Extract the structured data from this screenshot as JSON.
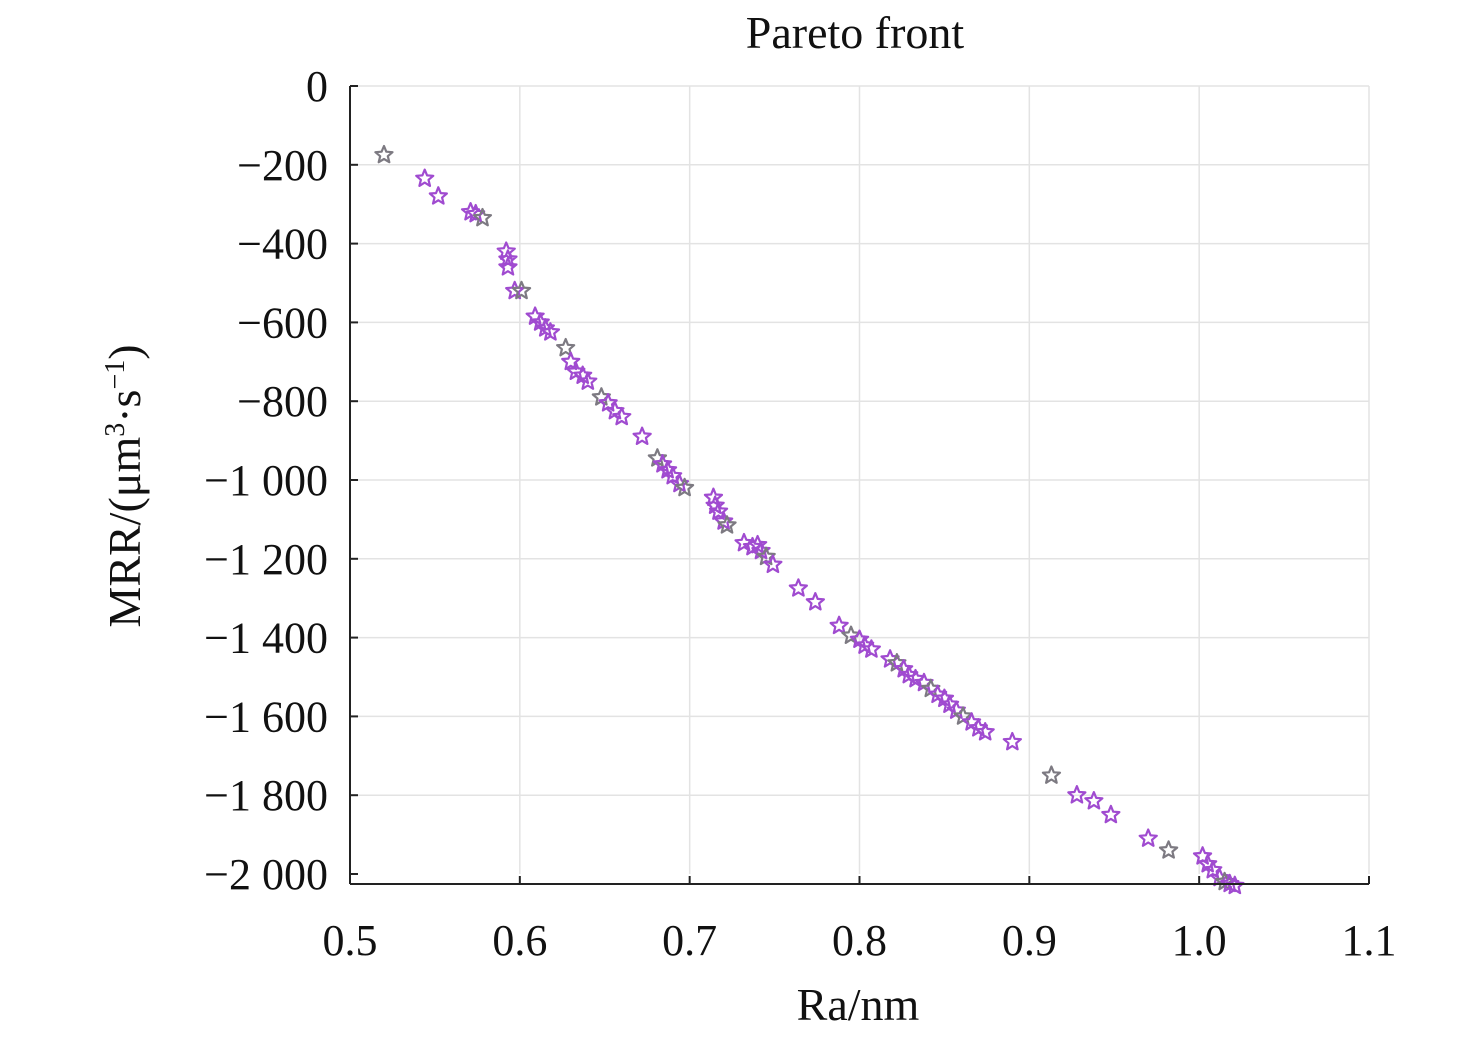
{
  "chart_data": {
    "type": "scatter",
    "title": "Pareto front",
    "xlabel": "Ra/nm",
    "ylabel": {
      "base": "MRR/(μm",
      "sup1": "3",
      "mid": "·s",
      "sup2": "−1",
      "end": ")"
    },
    "xlim": [
      0.5,
      1.1
    ],
    "ylim": [
      -2000,
      0
    ],
    "xticks": [
      0.5,
      0.6,
      0.7,
      0.8,
      0.9,
      1.0,
      1.1
    ],
    "xtick_labels": [
      "0.5",
      "0.6",
      "0.7",
      "0.8",
      "0.9",
      "1.0",
      "1.1"
    ],
    "yticks": [
      0,
      -200,
      -400,
      -600,
      -800,
      -1000,
      -1200,
      -1400,
      -1600,
      -1800,
      -2000
    ],
    "ytick_labels": [
      "0",
      "−200",
      "−400",
      "−600",
      "−800",
      "−1 000",
      "−1 200",
      "−1 400",
      "−1 600",
      "−1 800",
      "−2 000"
    ],
    "grid": true,
    "marker": "star",
    "colors": {
      "marker_stroke": "#a04bd0",
      "marker_stroke_alt": "#7d7a82"
    },
    "series": [
      {
        "points": [
          [
            0.52,
            -175
          ],
          [
            0.544,
            -235
          ],
          [
            0.552,
            -280
          ],
          [
            0.571,
            -320
          ],
          [
            0.574,
            -325
          ],
          [
            0.578,
            -335
          ],
          [
            0.592,
            -420
          ],
          [
            0.593,
            -440
          ],
          [
            0.593,
            -460
          ],
          [
            0.597,
            -520
          ],
          [
            0.601,
            -520
          ],
          [
            0.609,
            -585
          ],
          [
            0.612,
            -600
          ],
          [
            0.615,
            -615
          ],
          [
            0.618,
            -625
          ],
          [
            0.627,
            -665
          ],
          [
            0.63,
            -700
          ],
          [
            0.633,
            -725
          ],
          [
            0.637,
            -735
          ],
          [
            0.64,
            -750
          ],
          [
            0.648,
            -790
          ],
          [
            0.652,
            -805
          ],
          [
            0.656,
            -825
          ],
          [
            0.66,
            -840
          ],
          [
            0.672,
            -890
          ],
          [
            0.681,
            -945
          ],
          [
            0.684,
            -960
          ],
          [
            0.687,
            -975
          ],
          [
            0.69,
            -990
          ],
          [
            0.694,
            -1010
          ],
          [
            0.697,
            -1020
          ],
          [
            0.714,
            -1045
          ],
          [
            0.715,
            -1065
          ],
          [
            0.717,
            -1080
          ],
          [
            0.72,
            -1105
          ],
          [
            0.722,
            -1115
          ],
          [
            0.732,
            -1160
          ],
          [
            0.737,
            -1170
          ],
          [
            0.74,
            -1165
          ],
          [
            0.742,
            -1180
          ],
          [
            0.745,
            -1195
          ],
          [
            0.749,
            -1215
          ],
          [
            0.764,
            -1275
          ],
          [
            0.774,
            -1310
          ],
          [
            0.788,
            -1370
          ],
          [
            0.795,
            -1395
          ],
          [
            0.8,
            -1405
          ],
          [
            0.803,
            -1420
          ],
          [
            0.807,
            -1430
          ],
          [
            0.818,
            -1455
          ],
          [
            0.822,
            -1465
          ],
          [
            0.826,
            -1480
          ],
          [
            0.829,
            -1495
          ],
          [
            0.833,
            -1505
          ],
          [
            0.838,
            -1515
          ],
          [
            0.842,
            -1530
          ],
          [
            0.846,
            -1545
          ],
          [
            0.85,
            -1555
          ],
          [
            0.853,
            -1570
          ],
          [
            0.857,
            -1585
          ],
          [
            0.861,
            -1600
          ],
          [
            0.866,
            -1615
          ],
          [
            0.87,
            -1630
          ],
          [
            0.874,
            -1640
          ],
          [
            0.89,
            -1665
          ],
          [
            0.913,
            -1750
          ],
          [
            0.928,
            -1800
          ],
          [
            0.938,
            -1815
          ],
          [
            0.948,
            -1850
          ],
          [
            0.97,
            -1910
          ],
          [
            0.982,
            -1940
          ],
          [
            1.002,
            -1955
          ],
          [
            1.005,
            -1975
          ],
          [
            1.008,
            -1990
          ],
          [
            1.012,
            -2010
          ],
          [
            1.015,
            -2020
          ],
          [
            1.018,
            -2025
          ],
          [
            1.021,
            -2030
          ]
        ]
      }
    ]
  }
}
